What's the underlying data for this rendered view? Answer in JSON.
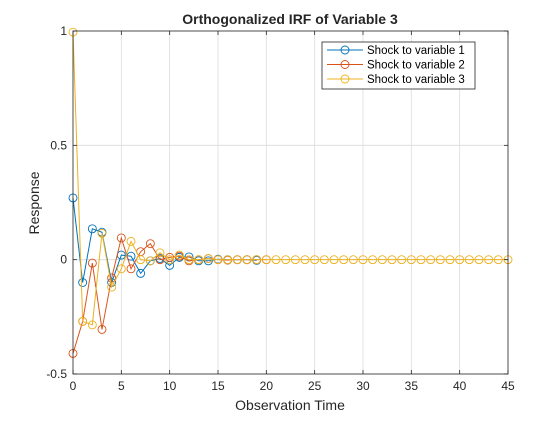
{
  "chart_data": {
    "type": "line",
    "title": "Orthogonalized IRF of Variable 3",
    "xlabel": "Observation Time",
    "ylabel": "Response",
    "xlim": [
      0,
      45
    ],
    "ylim": [
      -0.5,
      1
    ],
    "xticks": [
      0,
      5,
      10,
      15,
      20,
      25,
      30,
      35,
      40,
      45
    ],
    "yticks": [
      -0.5,
      0,
      0.5,
      1
    ],
    "xtick_labels": [
      "0",
      "5",
      "10",
      "15",
      "20",
      "25",
      "30",
      "35",
      "40",
      "45"
    ],
    "ytick_labels": [
      "-0.5",
      "0",
      "0.5",
      "1"
    ],
    "grid": true,
    "legend_position": "top-right",
    "marker": "circle",
    "series": [
      {
        "name": "Shock to variable 1",
        "color": "#0072BD",
        "x": [
          0,
          1,
          2,
          3,
          4,
          5,
          6,
          7,
          8,
          9,
          10,
          11,
          12,
          13,
          14,
          15,
          16,
          17,
          18,
          19
        ],
        "y": [
          0.27,
          -0.1,
          0.135,
          0.12,
          -0.1,
          0.02,
          0.015,
          -0.06,
          -0.005,
          0.005,
          -0.025,
          0.01,
          0.012,
          -0.005,
          -0.005,
          0.002,
          0.0,
          0.0,
          0.0,
          -0.003
        ]
      },
      {
        "name": "Shock to variable 2",
        "color": "#D95319",
        "x": [
          0,
          1,
          2,
          3,
          4,
          5,
          6,
          7,
          8,
          9,
          10,
          11,
          12,
          13,
          14,
          15,
          16,
          17,
          18,
          19,
          20
        ],
        "y": [
          -0.41,
          -0.27,
          -0.015,
          -0.305,
          -0.08,
          0.095,
          -0.04,
          0.035,
          0.07,
          0.0,
          0.01,
          0.015,
          -0.005,
          0.0,
          0.005,
          0.0,
          -0.002,
          0.0,
          0.0,
          0.0,
          0.0
        ]
      },
      {
        "name": "Shock to variable 3",
        "color": "#EDB120",
        "x": [
          0,
          1,
          2,
          3,
          4,
          5,
          6,
          7,
          8,
          9,
          10,
          11,
          12,
          13,
          14,
          15,
          16,
          17,
          18,
          19,
          20,
          21,
          22,
          23,
          24,
          25,
          26,
          27,
          28,
          29,
          30,
          31,
          32,
          33,
          34,
          35,
          36,
          37,
          38,
          39,
          40,
          41,
          42,
          43,
          44,
          45
        ],
        "y": [
          0.995,
          -0.27,
          -0.285,
          0.115,
          -0.12,
          -0.04,
          0.08,
          0.0,
          -0.005,
          0.03,
          0.0,
          0.02,
          0.0,
          0.0,
          0.005,
          0.0,
          0.0,
          0.0,
          0.0,
          0.0,
          0.0,
          0.0,
          0.0,
          0.0,
          0.0,
          0.0,
          0.0,
          0.0,
          0.0,
          0.0,
          0.0,
          0.0,
          0.0,
          0.0,
          0.0,
          0.0,
          0.0,
          0.0,
          0.0,
          0.0,
          0.0,
          0.0,
          0.0,
          0.0,
          0.0,
          0.0
        ]
      }
    ]
  }
}
